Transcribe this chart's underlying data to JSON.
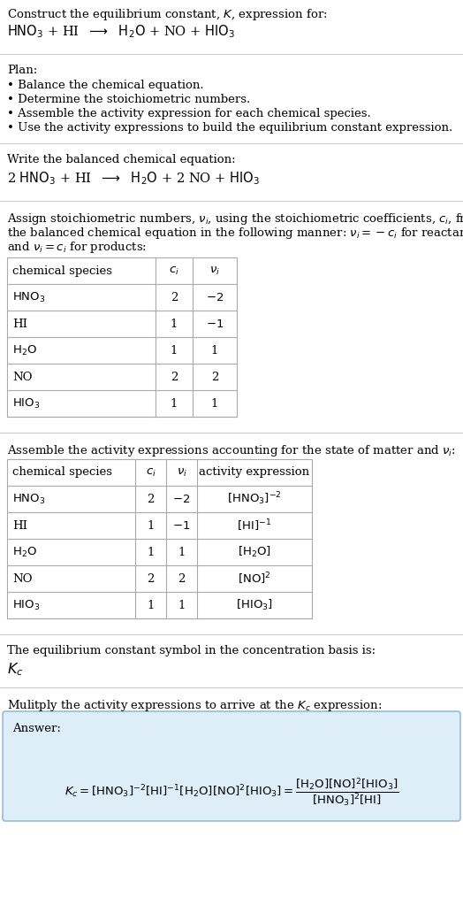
{
  "title_line1": "Construct the equilibrium constant, $K$, expression for:",
  "title_line2": "$\\mathrm{HNO_3}$ + HI  $\\longrightarrow$  $\\mathrm{H_2O}$ + NO + $\\mathrm{HIO_3}$",
  "plan_header": "Plan:",
  "plan_bullets": [
    "• Balance the chemical equation.",
    "• Determine the stoichiometric numbers.",
    "• Assemble the activity expression for each chemical species.",
    "• Use the activity expressions to build the equilibrium constant expression."
  ],
  "balanced_header": "Write the balanced chemical equation:",
  "balanced_eq": "2 $\\mathrm{HNO_3}$ + HI  $\\longrightarrow$  $\\mathrm{H_2O}$ + 2 NO + $\\mathrm{HIO_3}$",
  "stoich_lines": [
    "Assign stoichiometric numbers, $\\nu_i$, using the stoichiometric coefficients, $c_i$, from",
    "the balanced chemical equation in the following manner: $\\nu_i = -c_i$ for reactants",
    "and $\\nu_i = c_i$ for products:"
  ],
  "table1_headers": [
    "chemical species",
    "$c_i$",
    "$\\nu_i$"
  ],
  "table1_rows": [
    [
      "$\\mathrm{HNO_3}$",
      "2",
      "$-2$"
    ],
    [
      "HI",
      "1",
      "$-1$"
    ],
    [
      "$\\mathrm{H_2O}$",
      "1",
      "1"
    ],
    [
      "NO",
      "2",
      "2"
    ],
    [
      "$\\mathrm{HIO_3}$",
      "1",
      "1"
    ]
  ],
  "activity_intro": "Assemble the activity expressions accounting for the state of matter and $\\nu_i$:",
  "table2_headers": [
    "chemical species",
    "$c_i$",
    "$\\nu_i$",
    "activity expression"
  ],
  "table2_rows": [
    [
      "$\\mathrm{HNO_3}$",
      "2",
      "$-2$",
      "$[\\mathrm{HNO_3}]^{-2}$"
    ],
    [
      "HI",
      "1",
      "$-1$",
      "$[\\mathrm{HI}]^{-1}$"
    ],
    [
      "$\\mathrm{H_2O}$",
      "1",
      "1",
      "$[\\mathrm{H_2O}]$"
    ],
    [
      "NO",
      "2",
      "2",
      "$[\\mathrm{NO}]^2$"
    ],
    [
      "$\\mathrm{HIO_3}$",
      "1",
      "1",
      "$[\\mathrm{HIO_3}]$"
    ]
  ],
  "kc_intro": "The equilibrium constant symbol in the concentration basis is:",
  "kc_symbol": "$K_c$",
  "multiply_intro": "Mulitply the activity expressions to arrive at the $K_c$ expression:",
  "answer_label": "Answer:",
  "answer_box_bg": "#ddeef8",
  "answer_box_border": "#99bbdd",
  "separator_color": "#cccccc",
  "table_line_color": "#aaaaaa",
  "text_color": "#000000",
  "bg_color": "#ffffff"
}
